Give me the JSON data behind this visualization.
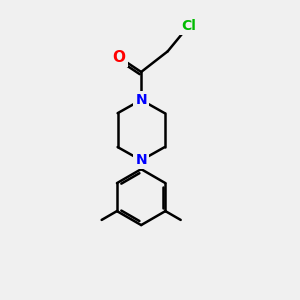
{
  "background_color": "#f0f0f0",
  "bond_color": "#000000",
  "bond_width": 1.8,
  "atom_colors": {
    "N": "#0000ff",
    "O": "#ff0000",
    "Cl": "#00bb00",
    "C": "#000000"
  },
  "font_size_N": 10,
  "font_size_O": 11,
  "font_size_Cl": 10,
  "fig_width": 3.0,
  "fig_height": 3.0,
  "dpi": 100
}
